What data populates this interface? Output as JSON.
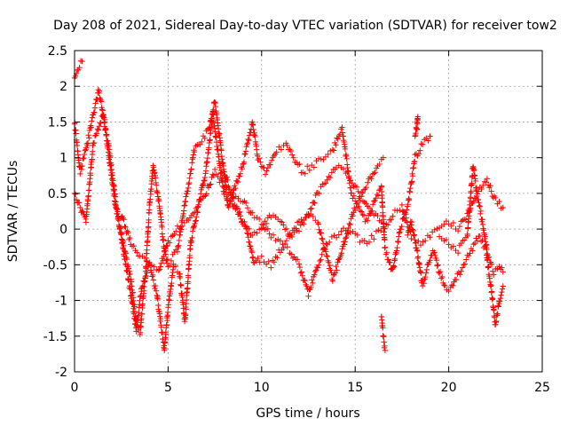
{
  "chart_data": {
    "type": "scatter",
    "title": "Day 208 of 2021, Sidereal Day-to-day VTEC variation (SDTVAR) for receiver tow2",
    "xlabel": "GPS time / hours",
    "ylabel": "SDTVAR / TECUs",
    "xlim": [
      0,
      25
    ],
    "ylim": [
      -2,
      2.5
    ],
    "xticks": [
      0,
      5,
      10,
      15,
      20,
      25
    ],
    "xtick_labels": [
      "0",
      "5",
      "10",
      "15",
      "20",
      "25"
    ],
    "yticks": [
      2.5,
      2,
      1.5,
      1,
      0.5,
      0,
      -0.5,
      -1,
      -1.5,
      -2
    ],
    "ytick_labels": [
      "2.5",
      "2",
      "1.5",
      "1",
      "0.5",
      "0",
      "-0.5",
      "-1",
      "-1.5",
      "-2"
    ],
    "grid": true,
    "marker": "+",
    "marker_color": "#ff0000",
    "series": [
      {
        "name": "satellite tracks",
        "tracks": [
          [
            [
              0,
              2.1
            ],
            [
              0.2,
              2.25
            ],
            [
              0.4,
              2.35
            ]
          ],
          [
            [
              0,
              1.5
            ],
            [
              0.3,
              0.8
            ],
            [
              0.6,
              1.1
            ],
            [
              1.0,
              1.6
            ],
            [
              1.3,
              1.95
            ],
            [
              1.6,
              1.5
            ],
            [
              1.9,
              0.9
            ],
            [
              2.2,
              0.3
            ],
            [
              2.6,
              -0.2
            ],
            [
              3.0,
              -0.7
            ],
            [
              3.3,
              -1.3
            ],
            [
              3.5,
              -1.45
            ],
            [
              3.8,
              -0.6
            ],
            [
              4.0,
              0.3
            ],
            [
              4.2,
              0.9
            ],
            [
              4.5,
              0.4
            ],
            [
              4.8,
              -0.3
            ],
            [
              5.0,
              -0.5
            ],
            [
              5.5,
              -0.3
            ],
            [
              6.0,
              0.5
            ],
            [
              6.4,
              1.1
            ],
            [
              6.8,
              1.25
            ],
            [
              7.2,
              1.4
            ],
            [
              7.5,
              1.8
            ],
            [
              7.8,
              1.2
            ],
            [
              8.2,
              0.3
            ],
            [
              8.6,
              0.6
            ],
            [
              9.0,
              0.9
            ],
            [
              9.5,
              1.5
            ],
            [
              9.8,
              1.0
            ],
            [
              10.2,
              0.8
            ],
            [
              10.8,
              1.1
            ],
            [
              11.3,
              1.2
            ],
            [
              11.7,
              1.0
            ],
            [
              12.2,
              0.8
            ],
            [
              12.8,
              0.9
            ],
            [
              13.3,
              1.0
            ],
            [
              13.8,
              1.1
            ],
            [
              14.3,
              1.4
            ],
            [
              14.8,
              0.5
            ],
            [
              15.2,
              0.3
            ],
            [
              15.6,
              0.1
            ],
            [
              16.0,
              0.35
            ],
            [
              16.4,
              0.6
            ],
            [
              16.6,
              -0.3
            ],
            [
              17.0,
              -0.6
            ],
            [
              17.4,
              0.0
            ],
            [
              17.8,
              0.3
            ],
            [
              18.2,
              1.0
            ],
            [
              18.6,
              1.2
            ],
            [
              19.0,
              1.3
            ]
          ],
          [
            [
              0,
              0.5
            ],
            [
              0.3,
              0.3
            ],
            [
              0.6,
              0.1
            ],
            [
              1.0,
              1.2
            ],
            [
              1.5,
              1.6
            ],
            [
              1.8,
              1.2
            ],
            [
              2.2,
              0.4
            ],
            [
              2.6,
              -0.3
            ],
            [
              3.0,
              -0.9
            ],
            [
              3.3,
              -1.4
            ],
            [
              3.6,
              -0.8
            ],
            [
              4.0,
              -0.5
            ],
            [
              4.4,
              -0.9
            ],
            [
              4.8,
              -1.7
            ],
            [
              5.0,
              -1.1
            ],
            [
              5.3,
              -0.5
            ],
            [
              5.6,
              -0.6
            ],
            [
              5.9,
              -1.3
            ],
            [
              6.2,
              -0.2
            ],
            [
              6.6,
              0.3
            ],
            [
              7.0,
              0.8
            ],
            [
              7.4,
              1.6
            ],
            [
              7.7,
              1.0
            ],
            [
              8.0,
              0.5
            ],
            [
              8.4,
              0.4
            ],
            [
              8.8,
              0.2
            ],
            [
              9.2,
              0.0
            ],
            [
              9.6,
              -0.5
            ],
            [
              10.0,
              -0.4
            ],
            [
              10.5,
              -0.5
            ],
            [
              11.0,
              -0.3
            ],
            [
              11.5,
              -0.1
            ],
            [
              12.0,
              0.1
            ],
            [
              12.5,
              0.2
            ],
            [
              13.0,
              0.1
            ],
            [
              13.4,
              -0.3
            ],
            [
              13.8,
              -0.7
            ],
            [
              14.2,
              -0.4
            ],
            [
              14.6,
              0.0
            ],
            [
              15.0,
              0.3
            ],
            [
              15.4,
              0.5
            ],
            [
              15.8,
              0.7
            ],
            [
              16.2,
              0.9
            ],
            [
              16.5,
              1.0
            ]
          ],
          [
            [
              2.5,
              0.2
            ],
            [
              3.0,
              -0.2
            ],
            [
              3.5,
              -0.4
            ],
            [
              4.0,
              -0.5
            ],
            [
              4.5,
              -0.6
            ],
            [
              5.0,
              -0.2
            ],
            [
              5.5,
              0.0
            ],
            [
              6.0,
              0.1
            ],
            [
              6.5,
              0.3
            ],
            [
              7.0,
              0.5
            ],
            [
              7.5,
              0.8
            ],
            [
              8.0,
              0.6
            ],
            [
              8.5,
              0.5
            ],
            [
              9.0,
              0.4
            ],
            [
              9.5,
              0.2
            ],
            [
              10.0,
              0.1
            ],
            [
              10.5,
              -0.1
            ],
            [
              11.0,
              -0.2
            ],
            [
              11.5,
              -0.3
            ],
            [
              12.0,
              -0.5
            ],
            [
              12.5,
              -0.9
            ],
            [
              13.0,
              -0.5
            ],
            [
              13.5,
              -0.2
            ],
            [
              14.0,
              -0.1
            ],
            [
              14.5,
              0.0
            ],
            [
              15.0,
              -0.1
            ],
            [
              15.5,
              -0.2
            ],
            [
              16.0,
              -0.1
            ],
            [
              16.5,
              0.0
            ],
            [
              17.0,
              0.2
            ],
            [
              17.5,
              0.3
            ],
            [
              18.0,
              -0.1
            ],
            [
              18.5,
              -0.2
            ],
            [
              19.0,
              -0.1
            ],
            [
              19.5,
              0.0
            ],
            [
              20.0,
              0.1
            ],
            [
              20.5,
              0.0
            ],
            [
              21.0,
              0.2
            ],
            [
              21.5,
              0.5
            ],
            [
              22.0,
              0.7
            ],
            [
              22.5,
              0.4
            ],
            [
              22.9,
              0.3
            ]
          ],
          [
            [
              8.0,
              0.8
            ],
            [
              8.5,
              0.4
            ],
            [
              9.0,
              0.1
            ],
            [
              9.5,
              -0.1
            ],
            [
              10.0,
              0.0
            ],
            [
              10.5,
              0.2
            ],
            [
              11.0,
              0.1
            ],
            [
              11.5,
              -0.1
            ],
            [
              12.0,
              0.0
            ],
            [
              12.5,
              0.2
            ],
            [
              13.0,
              0.5
            ],
            [
              13.5,
              0.7
            ],
            [
              14.0,
              0.9
            ],
            [
              14.5,
              0.8
            ],
            [
              15.0,
              0.6
            ],
            [
              15.5,
              0.4
            ],
            [
              16.0,
              0.2
            ],
            [
              16.4,
              0.1
            ]
          ],
          [
            [
              16.4,
              -1.2
            ],
            [
              16.5,
              -1.5
            ],
            [
              16.6,
              -1.7
            ]
          ],
          [
            [
              17.8,
              -0.1
            ],
            [
              18.0,
              0.1
            ],
            [
              18.3,
              -0.3
            ],
            [
              18.6,
              -0.8
            ],
            [
              18.9,
              -0.5
            ],
            [
              19.2,
              -0.3
            ],
            [
              19.5,
              -0.6
            ],
            [
              19.8,
              -0.8
            ],
            [
              20.1,
              -0.85
            ],
            [
              20.4,
              -0.7
            ],
            [
              20.8,
              -0.5
            ],
            [
              21.2,
              -0.3
            ],
            [
              21.6,
              -0.1
            ],
            [
              22.0,
              -0.3
            ],
            [
              22.3,
              -0.9
            ],
            [
              22.5,
              -1.35
            ],
            [
              22.7,
              -1.0
            ],
            [
              22.9,
              -0.8
            ]
          ],
          [
            [
              18.3,
              1.4
            ],
            [
              18.35,
              1.6
            ],
            [
              18.2,
              1.3
            ]
          ],
          [
            [
              19.5,
              -0.1
            ],
            [
              20.0,
              -0.2
            ],
            [
              20.5,
              -0.3
            ],
            [
              21.0,
              -0.1
            ],
            [
              21.3,
              0.9
            ],
            [
              21.5,
              0.5
            ],
            [
              21.8,
              0.1
            ],
            [
              22.1,
              -0.4
            ],
            [
              22.4,
              -0.6
            ],
            [
              22.7,
              -0.5
            ],
            [
              22.9,
              -0.6
            ]
          ]
        ]
      }
    ]
  }
}
